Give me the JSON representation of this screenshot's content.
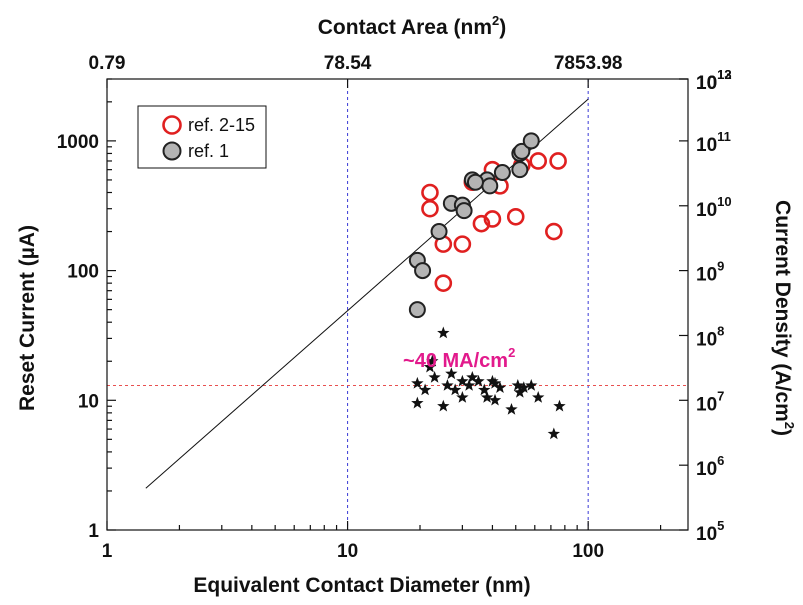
{
  "chart_data": {
    "type": "scatter",
    "xlabel": "Equivalent Contact Diameter (nm)",
    "ylabel": "Reset Current (µA)",
    "x_top_label": "Contact Area (nm",
    "x_top_label_sup": "2",
    "x_top_label_end": ")",
    "y_right_label": "Current Density (A/cm",
    "y_right_label_sup": "2",
    "y_right_label_end": ")",
    "x_scale": "log",
    "y_scale": "log",
    "xlim": [
      1,
      260
    ],
    "ylim": [
      1,
      3000
    ],
    "x_ticks": [
      {
        "value": 1,
        "label": "1"
      },
      {
        "value": 10,
        "label": "10"
      },
      {
        "value": 100,
        "label": "100"
      }
    ],
    "y_ticks": [
      {
        "value": 1,
        "label": "1"
      },
      {
        "value": 10,
        "label": "10"
      },
      {
        "value": 100,
        "label": "100"
      },
      {
        "value": 1000,
        "label": "1000"
      }
    ],
    "top_ticks": [
      {
        "diameter": 1,
        "label": "0.79"
      },
      {
        "diameter": 10,
        "label": "78.54"
      },
      {
        "diameter": 100,
        "label": "7853.98"
      }
    ],
    "right_ticks": [
      {
        "reset_current": 1,
        "base": "10",
        "exp": "5"
      },
      {
        "reset_current": 3.16,
        "base": "10",
        "exp": "6"
      },
      {
        "reset_current": 10,
        "base": "10",
        "exp": "7"
      },
      {
        "reset_current": 31.6,
        "base": "10",
        "exp": "8"
      },
      {
        "reset_current": 100,
        "base": "10",
        "exp": "9"
      },
      {
        "reset_current": 316,
        "base": "10",
        "exp": "10"
      },
      {
        "reset_current": 1000,
        "base": "10",
        "exp": "11"
      },
      {
        "reset_current": 3162,
        "base": "10",
        "exp": "12"
      },
      {
        "reset_current": 10000,
        "base": "10",
        "exp": "13"
      }
    ],
    "vertical_guides": [
      10,
      100
    ],
    "horizontal_guide": 13,
    "trend_line": {
      "x": [
        1.45,
        100
      ],
      "y": [
        2.1,
        2100
      ]
    },
    "annotation": {
      "text": "~40 MA/cm",
      "sup": "2",
      "x": 17,
      "y": 18
    },
    "legend": {
      "position": "top-left"
    },
    "series": [
      {
        "name": "ref. 2-15",
        "marker": "open-circle",
        "color": "#e02020",
        "points": [
          [
            22,
            400
          ],
          [
            22,
            300
          ],
          [
            25,
            160
          ],
          [
            30,
            160
          ],
          [
            33,
            480
          ],
          [
            36,
            230
          ],
          [
            40,
            250
          ],
          [
            40,
            600
          ],
          [
            43,
            450
          ],
          [
            50,
            260
          ],
          [
            53,
            650
          ],
          [
            62,
            700
          ],
          [
            75,
            700
          ],
          [
            72,
            200
          ],
          [
            25,
            80
          ]
        ]
      },
      {
        "name": "ref. 1",
        "marker": "filled-circle",
        "color": "#b4b4b4",
        "points": [
          [
            19.5,
            120
          ],
          [
            20.5,
            100
          ],
          [
            19.5,
            50
          ],
          [
            24,
            200
          ],
          [
            27,
            330
          ],
          [
            30,
            320
          ],
          [
            30.5,
            290
          ],
          [
            33,
            500
          ],
          [
            38,
            500
          ],
          [
            39,
            450
          ],
          [
            44,
            570
          ],
          [
            52,
            600
          ],
          [
            52,
            800
          ],
          [
            53,
            830
          ],
          [
            58,
            1000
          ],
          [
            34,
            480
          ]
        ]
      },
      {
        "marker": "star",
        "color": "#111111",
        "points": [
          [
            19.5,
            9.5
          ],
          [
            19.5,
            13.5
          ],
          [
            21,
            12
          ],
          [
            22,
            18
          ],
          [
            22.5,
            20
          ],
          [
            23,
            15
          ],
          [
            25,
            33
          ],
          [
            25,
            9
          ],
          [
            26,
            13
          ],
          [
            27,
            16
          ],
          [
            28,
            12
          ],
          [
            30,
            10.5
          ],
          [
            30,
            14
          ],
          [
            32,
            13
          ],
          [
            33,
            15
          ],
          [
            35,
            14
          ],
          [
            37,
            12
          ],
          [
            38,
            10.5
          ],
          [
            40,
            14
          ],
          [
            41,
            13.5
          ],
          [
            41,
            10
          ],
          [
            43,
            12.5
          ],
          [
            48,
            8.5
          ],
          [
            51,
            13
          ],
          [
            52,
            11.5
          ],
          [
            54,
            12.5
          ],
          [
            58,
            13
          ],
          [
            62,
            10.5
          ],
          [
            72,
            5.5
          ],
          [
            76,
            9
          ]
        ]
      }
    ]
  }
}
